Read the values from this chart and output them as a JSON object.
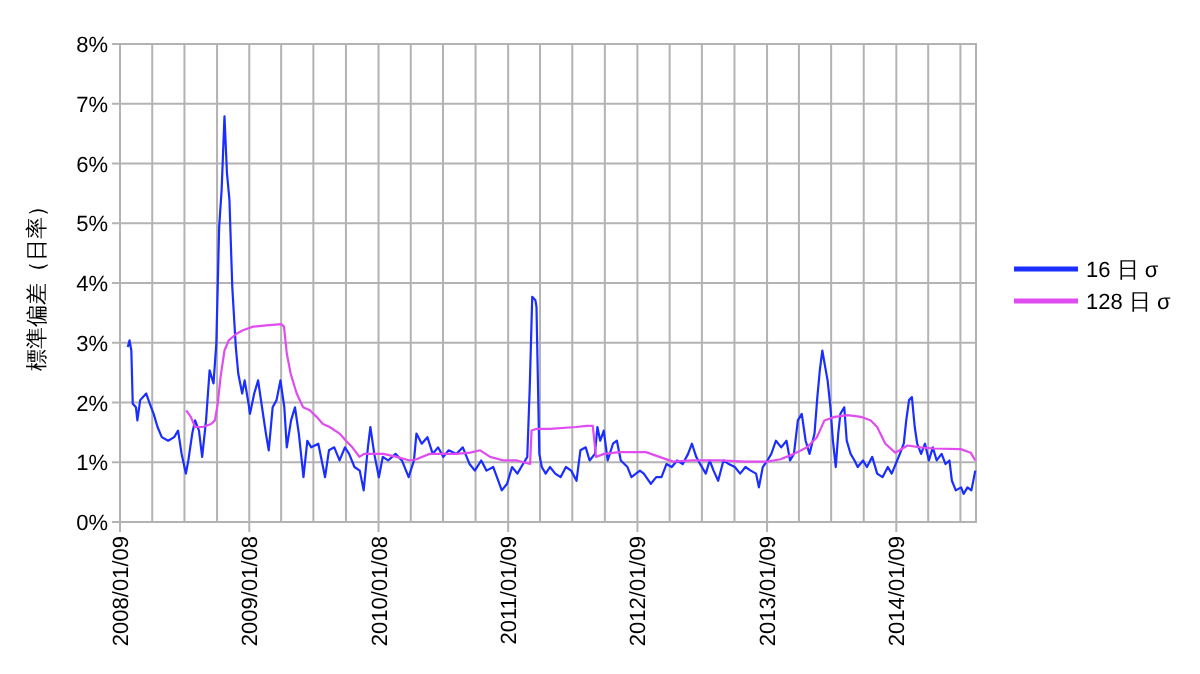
{
  "chart_data": {
    "type": "line",
    "ylabel": "標準偏差（日率）",
    "legend": "right",
    "grid": true,
    "marker": "none",
    "line_style": "solid",
    "xlim": [
      "2008-01-09",
      "2014-08-22"
    ],
    "xticks": [
      {
        "value": "2008-01-09",
        "label": "2008/01/09"
      },
      {
        "value": "2008-04-09",
        "label": null
      },
      {
        "value": "2008-07-09",
        "label": null
      },
      {
        "value": "2008-10-09",
        "label": null
      },
      {
        "value": "2009-01-08",
        "label": "2009/01/08"
      },
      {
        "value": "2009-04-08",
        "label": null
      },
      {
        "value": "2009-07-08",
        "label": null
      },
      {
        "value": "2009-10-08",
        "label": null
      },
      {
        "value": "2010-01-08",
        "label": "2010/01/08"
      },
      {
        "value": "2010-04-09",
        "label": null
      },
      {
        "value": "2010-07-09",
        "label": null
      },
      {
        "value": "2010-10-09",
        "label": null
      },
      {
        "value": "2011-01-09",
        "label": "2011/01/09"
      },
      {
        "value": "2011-04-09",
        "label": null
      },
      {
        "value": "2011-07-09",
        "label": null
      },
      {
        "value": "2011-10-09",
        "label": null
      },
      {
        "value": "2012-01-09",
        "label": "2012/01/09"
      },
      {
        "value": "2012-04-09",
        "label": null
      },
      {
        "value": "2012-07-09",
        "label": null
      },
      {
        "value": "2012-10-09",
        "label": null
      },
      {
        "value": "2013-01-09",
        "label": "2013/01/09"
      },
      {
        "value": "2013-04-09",
        "label": null
      },
      {
        "value": "2013-07-09",
        "label": null
      },
      {
        "value": "2013-10-09",
        "label": null
      },
      {
        "value": "2014-01-09",
        "label": "2014/01/09"
      },
      {
        "value": "2014-04-09",
        "label": null
      },
      {
        "value": "2014-07-09",
        "label": null
      }
    ],
    "ylim": [
      0,
      8
    ],
    "yticks": [
      {
        "value": 0,
        "label": "0%"
      },
      {
        "value": 1,
        "label": "1%"
      },
      {
        "value": 2,
        "label": "2%"
      },
      {
        "value": 3,
        "label": "3%"
      },
      {
        "value": 4,
        "label": "4%"
      },
      {
        "value": 5,
        "label": "5%"
      },
      {
        "value": 6,
        "label": "6%"
      },
      {
        "value": 7,
        "label": "7%"
      },
      {
        "value": 8,
        "label": "8%"
      }
    ],
    "series": [
      {
        "name": "16 日 σ",
        "color": "#1a2eff",
        "x": [
          "2008-01-31",
          "2008-02-05",
          "2008-02-10",
          "2008-02-14",
          "2008-02-23",
          "2008-02-27",
          "2008-03-06",
          "2008-03-23",
          "2008-04-02",
          "2008-04-13",
          "2008-04-24",
          "2008-05-06",
          "2008-05-24",
          "2008-06-10",
          "2008-06-21",
          "2008-07-01",
          "2008-07-13",
          "2008-07-20",
          "2008-07-31",
          "2008-08-08",
          "2008-08-19",
          "2008-08-28",
          "2008-09-08",
          "2008-09-18",
          "2008-09-29",
          "2008-10-07",
          "2008-10-15",
          "2008-10-22",
          "2008-10-30",
          "2008-11-06",
          "2008-11-13",
          "2008-11-21",
          "2008-12-01",
          "2008-12-08",
          "2008-12-19",
          "2008-12-26",
          "2009-01-06",
          "2009-01-10",
          "2009-01-22",
          "2009-02-02",
          "2009-02-13",
          "2009-02-24",
          "2009-03-04",
          "2009-03-15",
          "2009-03-26",
          "2009-04-06",
          "2009-04-17",
          "2009-04-24",
          "2009-05-06",
          "2009-05-17",
          "2009-05-28",
          "2009-06-10",
          "2009-06-21",
          "2009-07-02",
          "2009-07-22",
          "2009-08-10",
          "2009-08-21",
          "2009-09-05",
          "2009-09-20",
          "2009-10-05",
          "2009-10-17",
          "2009-11-01",
          "2009-11-16",
          "2009-11-27",
          "2009-12-09",
          "2009-12-16",
          "2009-12-27",
          "2010-01-09",
          "2010-01-20",
          "2010-02-04",
          "2010-02-25",
          "2010-03-15",
          "2010-04-03",
          "2010-04-18",
          "2010-04-25",
          "2010-05-10",
          "2010-05-26",
          "2010-06-10",
          "2010-06-25",
          "2010-07-10",
          "2010-07-25",
          "2010-08-16",
          "2010-09-03",
          "2010-09-22",
          "2010-10-07",
          "2010-10-25",
          "2010-11-09",
          "2010-11-28",
          "2010-12-22",
          "2011-01-06",
          "2011-01-20",
          "2011-02-04",
          "2011-02-15",
          "2011-03-04",
          "2011-03-11",
          "2011-03-18",
          "2011-03-27",
          "2011-03-30",
          "2011-04-07",
          "2011-04-14",
          "2011-04-25",
          "2011-05-07",
          "2011-05-22",
          "2011-06-06",
          "2011-06-21",
          "2011-07-06",
          "2011-07-21",
          "2011-08-01",
          "2011-08-16",
          "2011-08-27",
          "2011-09-11",
          "2011-09-18",
          "2011-09-26",
          "2011-10-06",
          "2011-10-17",
          "2011-11-01",
          "2011-11-12",
          "2011-11-23",
          "2011-12-12",
          "2011-12-23",
          "2012-01-16",
          "2012-01-27",
          "2012-02-16",
          "2012-03-02",
          "2012-03-17",
          "2012-03-31",
          "2012-04-15",
          "2012-04-30",
          "2012-05-16",
          "2012-05-31",
          "2012-06-11",
          "2012-06-23",
          "2012-07-04",
          "2012-07-20",
          "2012-07-31",
          "2012-08-11",
          "2012-08-24",
          "2012-09-08",
          "2012-09-23",
          "2012-10-10",
          "2012-10-25",
          "2012-11-09",
          "2012-11-24",
          "2012-12-09",
          "2012-12-17",
          "2012-12-28",
          "2013-01-10",
          "2013-01-21",
          "2013-02-03",
          "2013-02-18",
          "2013-03-05",
          "2013-03-15",
          "2013-03-26",
          "2013-04-06",
          "2013-04-17",
          "2013-04-28",
          "2013-05-09",
          "2013-05-23",
          "2013-05-31",
          "2013-06-07",
          "2013-06-14",
          "2013-06-22",
          "2013-06-29",
          "2013-07-07",
          "2013-07-14",
          "2013-07-22",
          "2013-07-29",
          "2013-08-04",
          "2013-08-15",
          "2013-08-22",
          "2013-09-02",
          "2013-09-13",
          "2013-09-22",
          "2013-10-07",
          "2013-10-18",
          "2013-11-02",
          "2013-11-16",
          "2013-12-01",
          "2013-12-16",
          "2013-12-27",
          "2014-01-19",
          "2014-01-30",
          "2014-02-06",
          "2014-02-14",
          "2014-02-22",
          "2014-03-02",
          "2014-03-09",
          "2014-03-20",
          "2014-03-31",
          "2014-04-11",
          "2014-04-22",
          "2014-05-03",
          "2014-05-17",
          "2014-05-28",
          "2014-06-08",
          "2014-06-15",
          "2014-06-26",
          "2014-07-11",
          "2014-07-18",
          "2014-07-29",
          "2014-08-09",
          "2014-08-20"
        ],
        "values": [
          2.93,
          3.04,
          2.87,
          1.98,
          1.92,
          1.7,
          2.04,
          2.15,
          1.98,
          1.81,
          1.59,
          1.42,
          1.36,
          1.42,
          1.53,
          1.14,
          0.81,
          1.03,
          1.48,
          1.7,
          1.53,
          1.09,
          1.7,
          2.54,
          2.32,
          2.99,
          4.94,
          5.56,
          6.79,
          5.84,
          5.39,
          3.94,
          2.93,
          2.48,
          2.15,
          2.37,
          1.98,
          1.81,
          2.15,
          2.37,
          1.92,
          1.48,
          1.2,
          1.92,
          2.04,
          2.37,
          1.92,
          1.25,
          1.7,
          1.92,
          1.48,
          0.75,
          1.36,
          1.25,
          1.31,
          0.75,
          1.2,
          1.25,
          1.03,
          1.25,
          1.14,
          0.92,
          0.86,
          0.53,
          1.25,
          1.59,
          1.14,
          0.75,
          1.09,
          1.03,
          1.14,
          1.03,
          0.75,
          1.03,
          1.48,
          1.31,
          1.42,
          1.14,
          1.25,
          1.09,
          1.2,
          1.14,
          1.25,
          0.97,
          0.86,
          1.03,
          0.86,
          0.92,
          0.53,
          0.64,
          0.92,
          0.81,
          0.92,
          1.09,
          2.26,
          3.77,
          3.71,
          3.6,
          1.14,
          0.92,
          0.81,
          0.92,
          0.81,
          0.75,
          0.92,
          0.86,
          0.69,
          1.2,
          1.25,
          1.03,
          1.14,
          1.59,
          1.36,
          1.53,
          1.03,
          1.31,
          1.36,
          1.03,
          0.92,
          0.75,
          0.86,
          0.81,
          0.64,
          0.75,
          0.75,
          0.97,
          0.92,
          1.03,
          0.97,
          1.14,
          1.31,
          1.09,
          0.97,
          0.81,
          1.03,
          0.86,
          0.69,
          1.03,
          0.97,
          0.92,
          0.81,
          0.92,
          0.86,
          0.81,
          0.58,
          0.92,
          1.03,
          1.14,
          1.36,
          1.25,
          1.36,
          1.03,
          1.14,
          1.7,
          1.81,
          1.36,
          1.14,
          1.48,
          2.09,
          2.54,
          2.87,
          2.6,
          2.37,
          1.92,
          1.36,
          0.92,
          1.48,
          1.81,
          1.92,
          1.36,
          1.14,
          1.03,
          0.92,
          1.03,
          0.92,
          1.09,
          0.81,
          0.75,
          0.92,
          0.81,
          1.14,
          1.31,
          1.7,
          2.04,
          2.09,
          1.59,
          1.31,
          1.14,
          1.31,
          1.03,
          1.25,
          1.03,
          1.14,
          0.97,
          1.03,
          0.69,
          0.53,
          0.58,
          0.47,
          0.58,
          0.53,
          0.86
        ]
      },
      {
        "name": "128 日 σ",
        "color": "#e04cf0",
        "x": [
          "2008-07-14",
          "2008-07-27",
          "2008-08-08",
          "2008-08-30",
          "2008-09-22",
          "2008-10-03",
          "2008-10-11",
          "2008-10-19",
          "2008-10-30",
          "2008-11-11",
          "2008-12-03",
          "2008-12-21",
          "2009-01-19",
          "2009-02-25",
          "2009-04-09",
          "2009-04-16",
          "2009-04-24",
          "2009-05-05",
          "2009-05-22",
          "2009-06-09",
          "2009-06-28",
          "2009-07-17",
          "2009-08-04",
          "2009-08-23",
          "2009-09-20",
          "2009-10-08",
          "2009-10-26",
          "2009-11-15",
          "2009-11-28",
          "2009-12-22",
          "2010-01-22",
          "2010-02-28",
          "2010-04-06",
          "2010-04-25",
          "2010-06-01",
          "2010-07-09",
          "2010-08-15",
          "2010-09-24",
          "2010-10-22",
          "2010-11-19",
          "2010-12-27",
          "2011-02-03",
          "2011-03-12",
          "2011-03-16",
          "2011-03-31",
          "2011-05-07",
          "2011-07-20",
          "2011-08-18",
          "2011-09-05",
          "2011-09-14",
          "2011-10-07",
          "2011-11-20",
          "2012-02-02",
          "2012-03-11",
          "2012-04-19",
          "2012-06-13",
          "2012-08-27",
          "2012-11-10",
          "2013-01-10",
          "2013-02-16",
          "2013-03-26",
          "2013-05-02",
          "2013-05-30",
          "2013-06-20",
          "2013-07-19",
          "2013-08-25",
          "2013-10-01",
          "2013-10-29",
          "2013-11-16",
          "2013-12-09",
          "2014-01-06",
          "2014-02-10",
          "2014-03-18",
          "2014-04-24",
          "2014-07-10",
          "2014-08-07",
          "2014-08-20"
        ],
        "values": [
          1.87,
          1.76,
          1.59,
          1.59,
          1.64,
          1.7,
          1.98,
          2.43,
          2.87,
          3.04,
          3.15,
          3.21,
          3.27,
          3.29,
          3.31,
          3.27,
          2.82,
          2.48,
          2.15,
          1.92,
          1.87,
          1.76,
          1.64,
          1.59,
          1.48,
          1.36,
          1.25,
          1.09,
          1.14,
          1.14,
          1.14,
          1.09,
          1.03,
          1.05,
          1.14,
          1.14,
          1.14,
          1.16,
          1.2,
          1.09,
          1.03,
          1.03,
          0.97,
          1.53,
          1.56,
          1.56,
          1.59,
          1.61,
          1.61,
          1.09,
          1.14,
          1.17,
          1.17,
          1.09,
          1.01,
          1.03,
          1.03,
          1.01,
          1.01,
          1.05,
          1.14,
          1.25,
          1.42,
          1.7,
          1.76,
          1.79,
          1.76,
          1.7,
          1.59,
          1.31,
          1.16,
          1.28,
          1.25,
          1.23,
          1.22,
          1.16,
          1.03
        ]
      }
    ]
  }
}
